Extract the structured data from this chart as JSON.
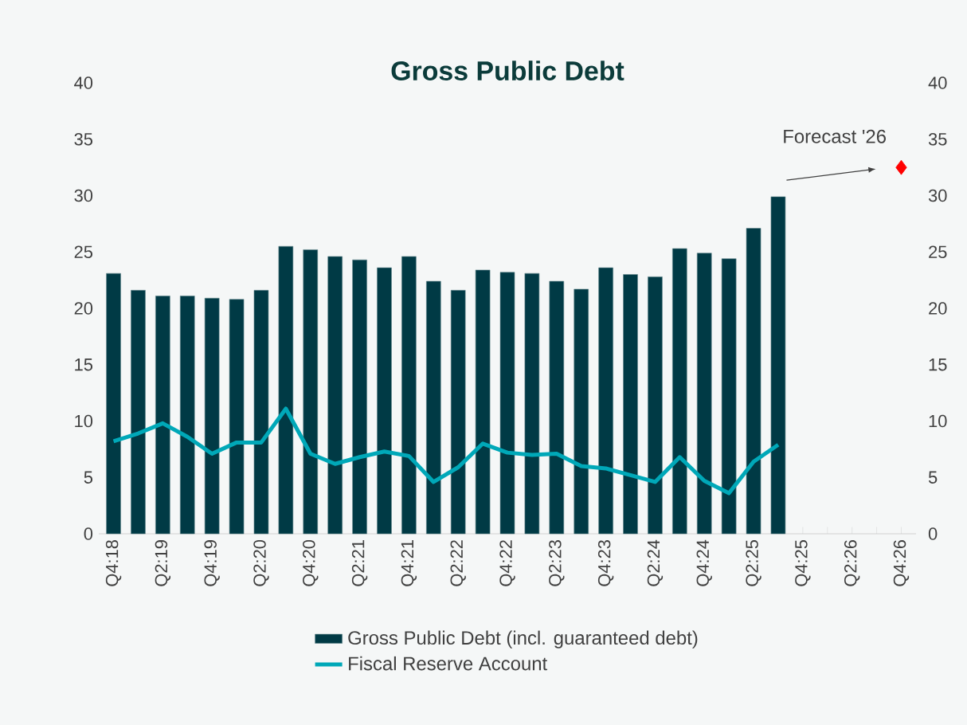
{
  "chart_data": {
    "type": "bar",
    "title": "Gross Public Debt",
    "categories": [
      "Q4:18",
      null,
      "Q2:19",
      null,
      "Q4:19",
      null,
      "Q2:20",
      null,
      "Q4:20",
      null,
      "Q2:21",
      null,
      "Q4:21",
      null,
      "Q2:22",
      null,
      "Q4:22",
      null,
      "Q2:23",
      null,
      "Q4:23",
      null,
      "Q2:24",
      null,
      "Q4:24",
      null,
      "Q2:25",
      null,
      "Q4:25",
      null,
      "Q2:26",
      null,
      "Q4:26"
    ],
    "series": [
      {
        "name": "Gross Public Debt (incl. guaranteed debt)",
        "color": "#003a45",
        "values": [
          23.1,
          21.6,
          21.1,
          21.1,
          20.9,
          20.8,
          21.6,
          25.5,
          25.2,
          24.6,
          24.3,
          23.6,
          24.6,
          22.4,
          21.6,
          23.4,
          23.2,
          23.1,
          22.4,
          21.7,
          23.6,
          23.0,
          22.8,
          25.3,
          24.9,
          24.4,
          27.1,
          29.9,
          null,
          null,
          null,
          null,
          null
        ]
      },
      {
        "name": "Fiscal Reserve Account",
        "type": "line",
        "color": "#00a8b8",
        "values": [
          8.2,
          8.9,
          9.8,
          8.6,
          7.1,
          8.1,
          8.1,
          11.1,
          7.1,
          6.2,
          6.8,
          7.3,
          6.9,
          4.6,
          5.9,
          8.0,
          7.2,
          7.0,
          7.1,
          6.0,
          5.8,
          5.2,
          4.6,
          6.8,
          4.7,
          3.6,
          6.4,
          7.9,
          null,
          null,
          null,
          null,
          null
        ]
      },
      {
        "type": "scatter",
        "color": "#ff0000",
        "marker": "diamond",
        "values": [
          null,
          null,
          null,
          null,
          null,
          null,
          null,
          null,
          null,
          null,
          null,
          null,
          null,
          null,
          null,
          null,
          null,
          null,
          null,
          null,
          null,
          null,
          null,
          null,
          null,
          null,
          null,
          null,
          null,
          null,
          null,
          null,
          32.5
        ]
      }
    ],
    "ylim": [
      0,
      40
    ],
    "yticks": [
      0,
      5,
      10,
      15,
      20,
      25,
      30,
      35,
      40
    ],
    "y2lim": [
      0,
      40
    ],
    "y2ticks": [
      0,
      5,
      10,
      15,
      20,
      25,
      30,
      35,
      40
    ],
    "legend": "bottom",
    "annotations": [
      {
        "text": "Forecast '26",
        "x": "Q4:26",
        "y": 32.5
      }
    ]
  }
}
